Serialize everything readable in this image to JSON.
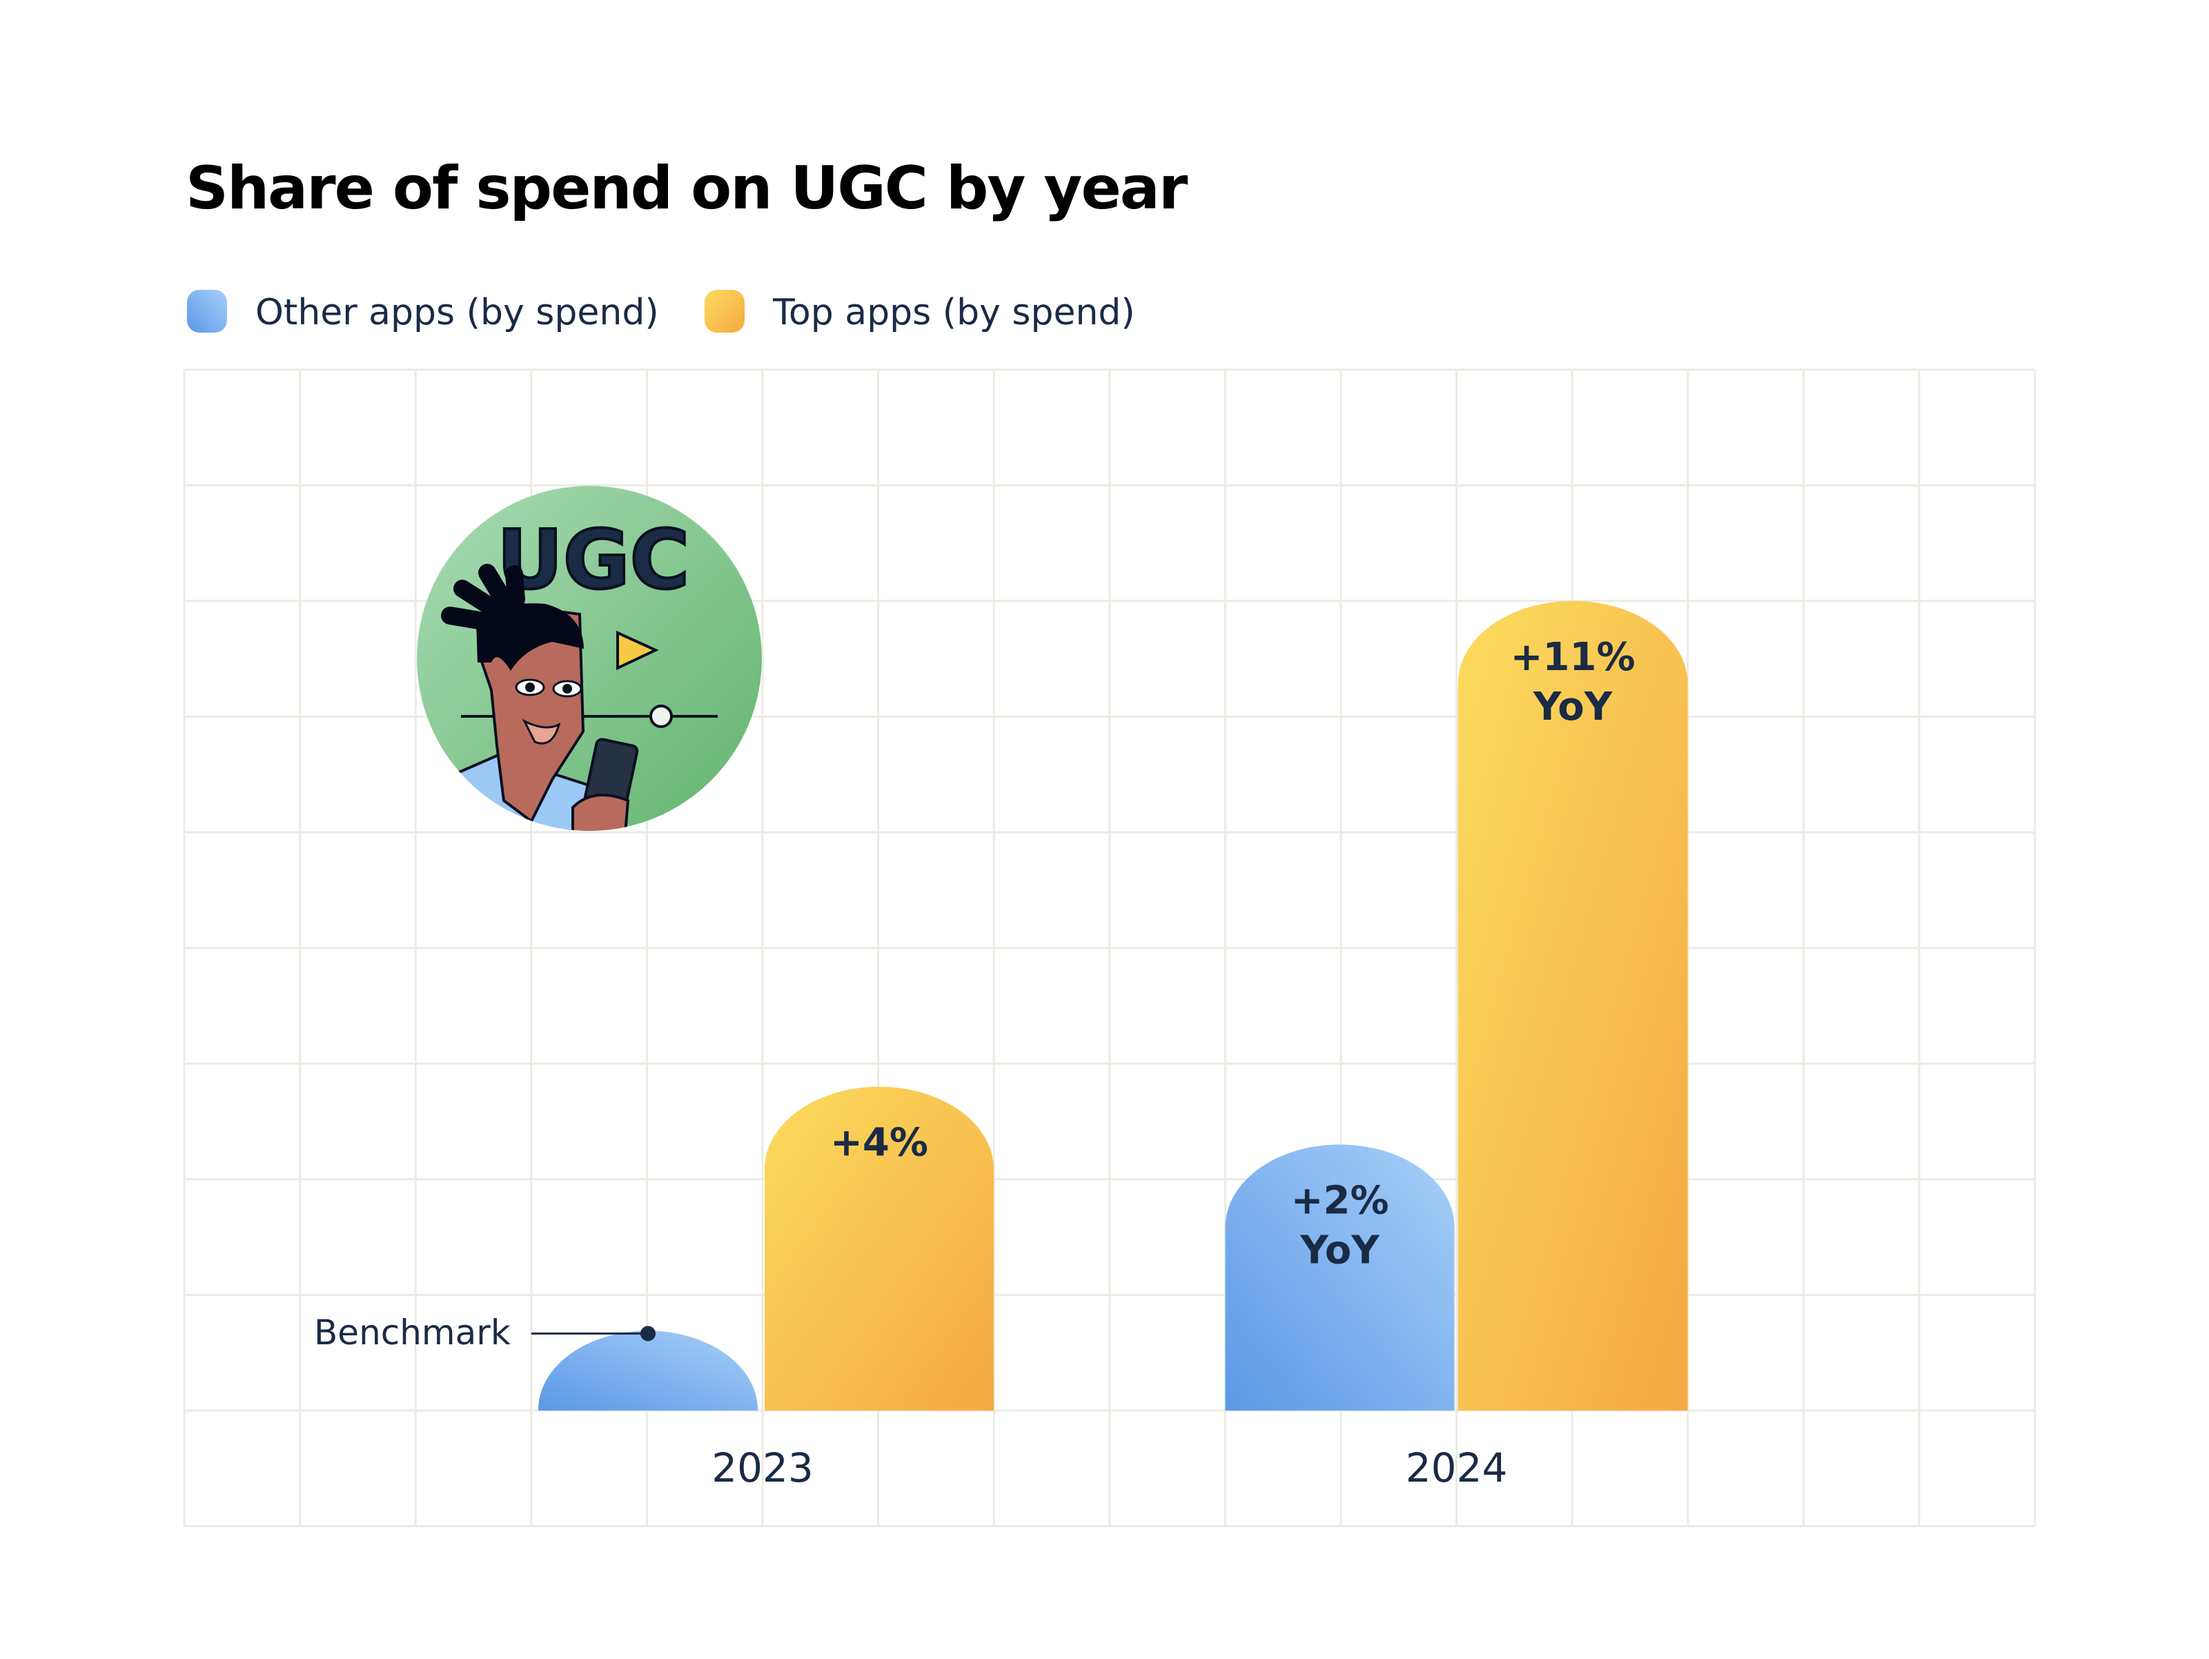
{
  "chart_data": {
    "type": "bar",
    "title": "Share of spend on UGC by year",
    "categories": [
      "2023",
      "2024"
    ],
    "series": [
      {
        "name": "Other apps (by spend)",
        "values": [
          0.69,
          2.3
        ],
        "labels": [
          [
            "",
            ""
          ],
          [
            "+2%",
            "YoY"
          ]
        ],
        "color_start": "#5b98e6",
        "color_end": "#a8d0f9"
      },
      {
        "name": "Top apps (by spend)",
        "values": [
          2.8,
          7.0
        ],
        "labels": [
          [
            "+4%",
            ""
          ],
          [
            "+11%",
            "YoY"
          ]
        ],
        "color_start": "#fcdc5e",
        "color_end": "#f5a843"
      }
    ],
    "ylim": [
      0,
      9
    ],
    "grid": true,
    "legend": "top-left",
    "annotation": "Benchmark",
    "illustration": {
      "icon": "ugc-person-with-phone-illustration",
      "text": "UGC"
    }
  },
  "colors": {
    "text": "#1a2b45",
    "grid": "#ebebe3",
    "illustration_bg": "#7cc48a"
  }
}
